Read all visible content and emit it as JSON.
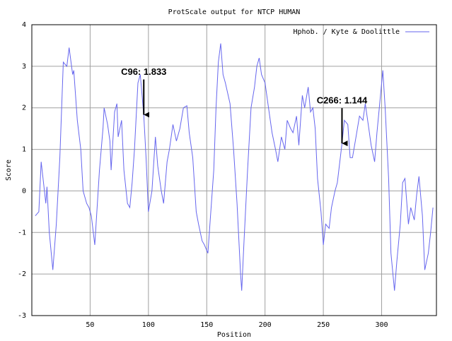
{
  "chart_data": {
    "type": "line",
    "title": "ProtScale output for NTCP HUMAN",
    "x_label": "Position",
    "y_label": "Score",
    "x": [
      3,
      6,
      8,
      10,
      12,
      13,
      15,
      18,
      21,
      24,
      27,
      30,
      32,
      35,
      36,
      39,
      42,
      44,
      47,
      49,
      51,
      54,
      58,
      61,
      62,
      65,
      67,
      68,
      71,
      73,
      74,
      77,
      79,
      82,
      84,
      86,
      88,
      91,
      93,
      96,
      98,
      100,
      103,
      106,
      108,
      111,
      113,
      116,
      118,
      121,
      124,
      127,
      130,
      133,
      135,
      138,
      141,
      143,
      146,
      148,
      151,
      153,
      156,
      158,
      160,
      162,
      164,
      166,
      170,
      173,
      176,
      179,
      180,
      182,
      185,
      188,
      191,
      193,
      195,
      197,
      200,
      203,
      206,
      209,
      211,
      214,
      217,
      219,
      222,
      224,
      227,
      229,
      232,
      234,
      237,
      239,
      241,
      243,
      245,
      248,
      250,
      252,
      255,
      257,
      260,
      262,
      266,
      268,
      271,
      273,
      275,
      278,
      281,
      284,
      286,
      289,
      291,
      294,
      296,
      299,
      301,
      303,
      306,
      308,
      311,
      313,
      316,
      318,
      320,
      323,
      325,
      328,
      330,
      332,
      335,
      337,
      340,
      342,
      344
    ],
    "series": [
      {
        "name": "Hphob. / Kyte & Doolittle",
        "color": "#6666ee",
        "values": [
          -0.6,
          -0.5,
          0.7,
          0.2,
          -0.3,
          0.1,
          -1.0,
          -1.9,
          -0.8,
          0.8,
          3.1,
          3.0,
          3.45,
          2.8,
          2.9,
          1.7,
          1.0,
          0.0,
          -0.3,
          -0.4,
          -0.6,
          -1.3,
          0.5,
          1.5,
          2.0,
          1.6,
          1.2,
          0.5,
          1.9,
          2.1,
          1.3,
          1.7,
          0.5,
          -0.3,
          -0.4,
          0.2,
          1.0,
          2.6,
          2.8,
          1.833,
          0.8,
          -0.5,
          0.0,
          1.3,
          0.6,
          0.0,
          -0.3,
          0.7,
          1.0,
          1.6,
          1.2,
          1.5,
          2.0,
          2.05,
          1.4,
          0.8,
          -0.5,
          -0.8,
          -1.2,
          -1.3,
          -1.5,
          -0.7,
          0.5,
          2.0,
          3.1,
          3.55,
          2.8,
          2.6,
          2.1,
          1.0,
          -0.3,
          -2.0,
          -2.4,
          -1.2,
          0.5,
          2.0,
          2.5,
          3.0,
          3.2,
          2.8,
          2.6,
          2.0,
          1.4,
          1.0,
          0.7,
          1.3,
          1.0,
          1.7,
          1.5,
          1.4,
          1.8,
          1.1,
          2.3,
          2.0,
          2.5,
          1.9,
          2.0,
          1.5,
          0.3,
          -0.5,
          -1.3,
          -0.8,
          -0.9,
          -0.4,
          0.0,
          0.2,
          1.144,
          1.7,
          1.6,
          0.8,
          0.8,
          1.3,
          1.8,
          1.7,
          2.1,
          1.5,
          1.1,
          0.7,
          1.4,
          2.3,
          2.9,
          2.0,
          0.3,
          -1.5,
          -2.4,
          -1.7,
          -0.8,
          0.2,
          0.3,
          -0.8,
          -0.4,
          -0.7,
          -0.1,
          0.35,
          -0.6,
          -1.9,
          -1.5,
          -1.0,
          -0.4
        ]
      }
    ],
    "xlim": [
      0,
      347
    ],
    "ylim": [
      -3,
      4
    ],
    "xticks": [
      50,
      100,
      150,
      200,
      250,
      300
    ],
    "yticks": [
      -3,
      -2,
      -1,
      0,
      1,
      2,
      3,
      4
    ],
    "grid": true,
    "legend": "top-right",
    "annotations": [
      {
        "text": "C96: 1.833",
        "x": 96,
        "y": 1.833
      },
      {
        "text": "C266: 1.144",
        "x": 266,
        "y": 1.144
      }
    ]
  }
}
